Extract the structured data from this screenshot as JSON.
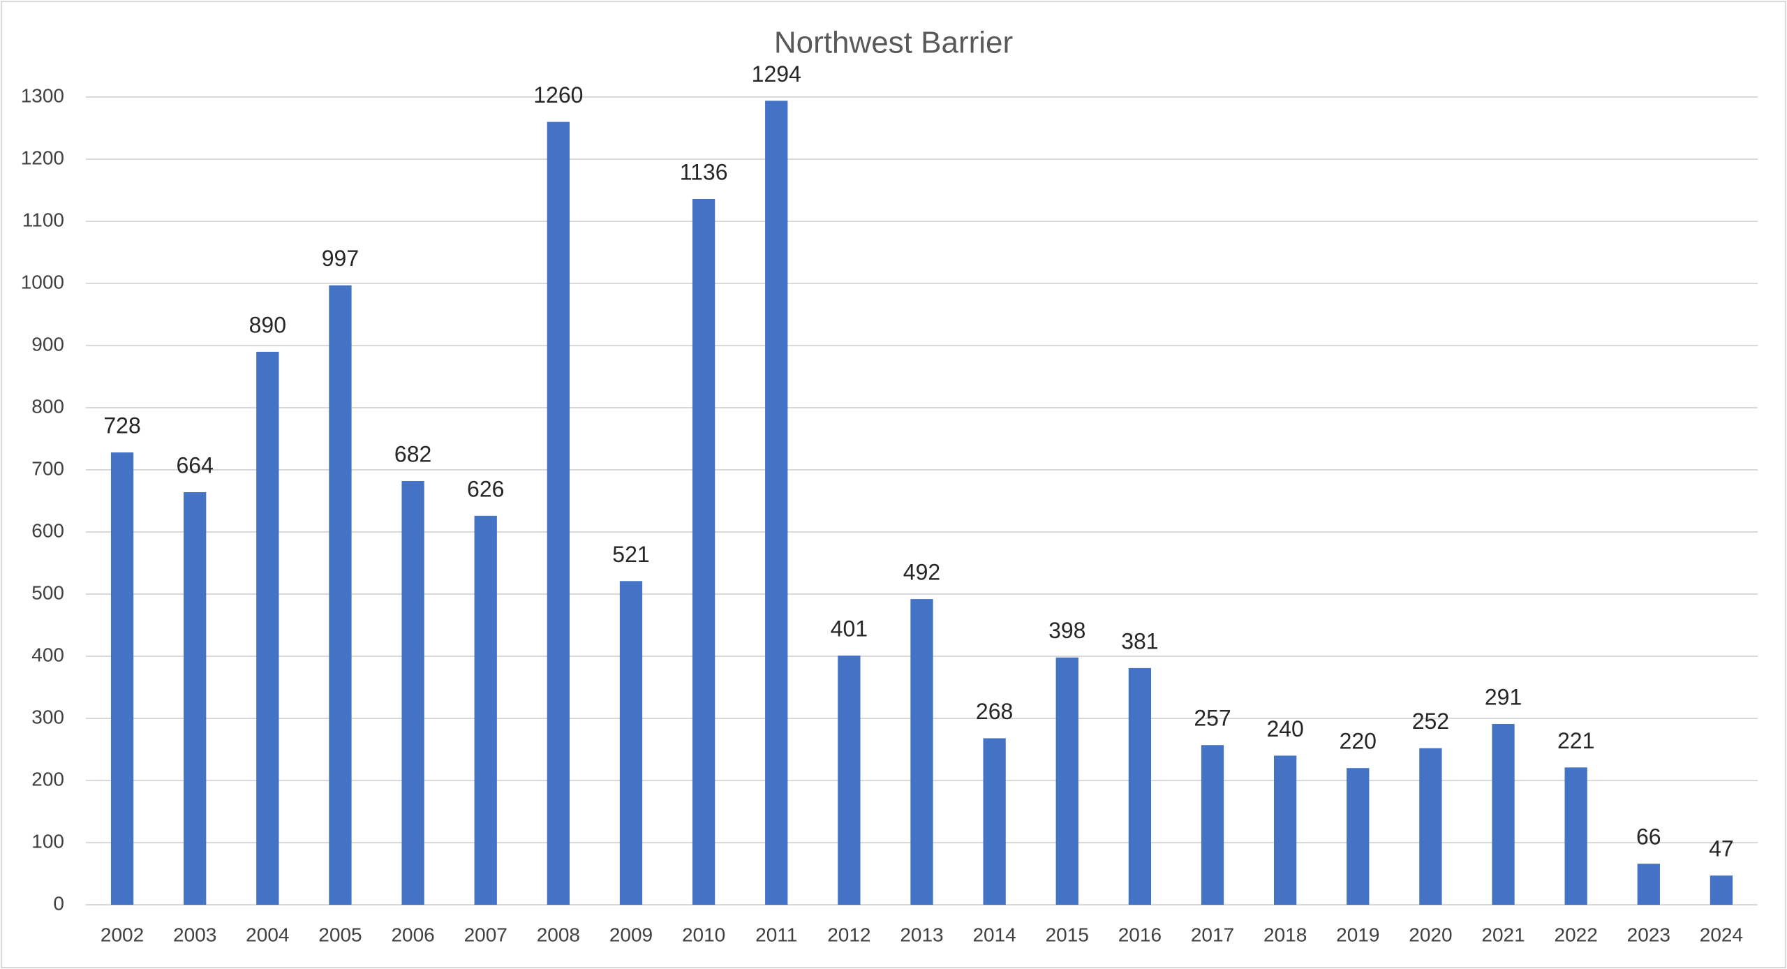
{
  "chart_data": {
    "type": "bar",
    "title": "Northwest Barrier",
    "categories": [
      "2002",
      "2003",
      "2004",
      "2005",
      "2006",
      "2007",
      "2008",
      "2009",
      "2010",
      "2011",
      "2012",
      "2013",
      "2014",
      "2015",
      "2016",
      "2017",
      "2018",
      "2019",
      "2020",
      "2021",
      "2022",
      "2023",
      "2024"
    ],
    "values": [
      728,
      664,
      890,
      997,
      682,
      626,
      1260,
      521,
      1136,
      1294,
      401,
      492,
      268,
      398,
      381,
      257,
      240,
      220,
      252,
      291,
      221,
      66,
      47
    ],
    "color": "#4472c4",
    "ylim": [
      0,
      1300
    ],
    "yticks": [
      0,
      100,
      200,
      300,
      400,
      500,
      600,
      700,
      800,
      900,
      1000,
      1100,
      1200,
      1300
    ],
    "grid": true
  }
}
